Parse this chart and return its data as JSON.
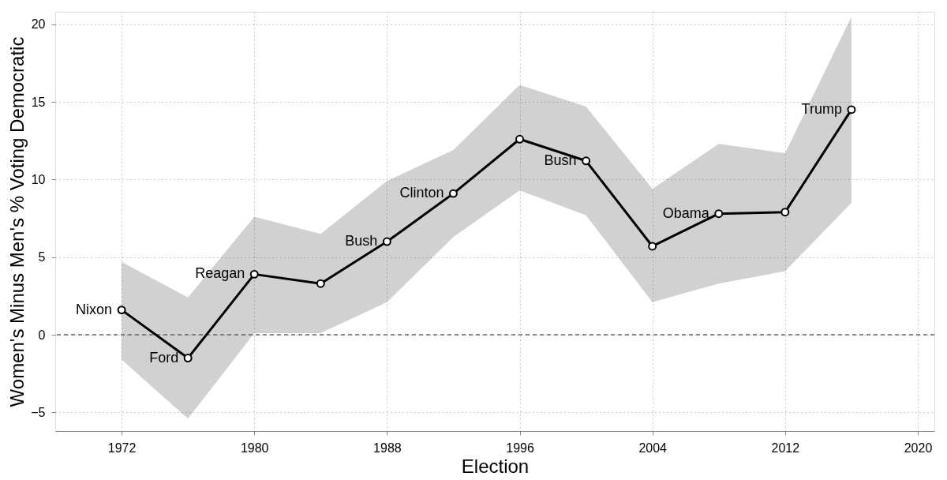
{
  "chart_data": {
    "type": "line",
    "xlabel": "Election",
    "ylabel": "Women's Minus Men's % Voting Democratic",
    "x": [
      1972,
      1976,
      1980,
      1984,
      1988,
      1992,
      1996,
      2000,
      2004,
      2008,
      2012,
      2016
    ],
    "series": [
      {
        "color": "#000000",
        "values": [
          1.6,
          -1.5,
          3.9,
          3.3,
          6.0,
          9.1,
          12.6,
          11.2,
          5.7,
          7.8,
          7.9,
          14.5
        ],
        "lower": [
          -1.6,
          -5.4,
          0.1,
          0.1,
          2.1,
          6.3,
          9.3,
          7.7,
          2.1,
          3.3,
          4.1,
          8.5
        ],
        "upper": [
          4.7,
          2.4,
          7.6,
          6.5,
          9.9,
          11.9,
          16.1,
          14.7,
          9.4,
          12.3,
          11.7,
          20.5
        ]
      }
    ],
    "xlim": [
      1968,
      2021
    ],
    "xticks": [
      1972,
      1980,
      1988,
      1996,
      2004,
      2012,
      2020
    ],
    "ylim": [
      -6.2,
      20.8
    ],
    "yticks": [
      -5,
      0,
      5,
      10,
      15,
      20
    ],
    "grid": true,
    "marker": "circle",
    "line_style": "solid",
    "ref_lines": [
      {
        "axis": "y",
        "value": 0,
        "color": "#666666",
        "line_style": "dashed"
      }
    ],
    "annotations": [
      {
        "text": "Nixon",
        "x": 1972,
        "y": 1.6
      },
      {
        "text": "Ford",
        "x": 1976,
        "y": -1.5
      },
      {
        "text": "Reagan",
        "x": 1980,
        "y": 3.9
      },
      {
        "text": "Bush",
        "x": 1988,
        "y": 6.0
      },
      {
        "text": "Clinton",
        "x": 1992,
        "y": 9.1
      },
      {
        "text": "Bush",
        "x": 2000,
        "y": 11.2
      },
      {
        "text": "Obama",
        "x": 2008,
        "y": 7.8
      },
      {
        "text": "Trump",
        "x": 2016,
        "y": 14.5
      }
    ]
  }
}
